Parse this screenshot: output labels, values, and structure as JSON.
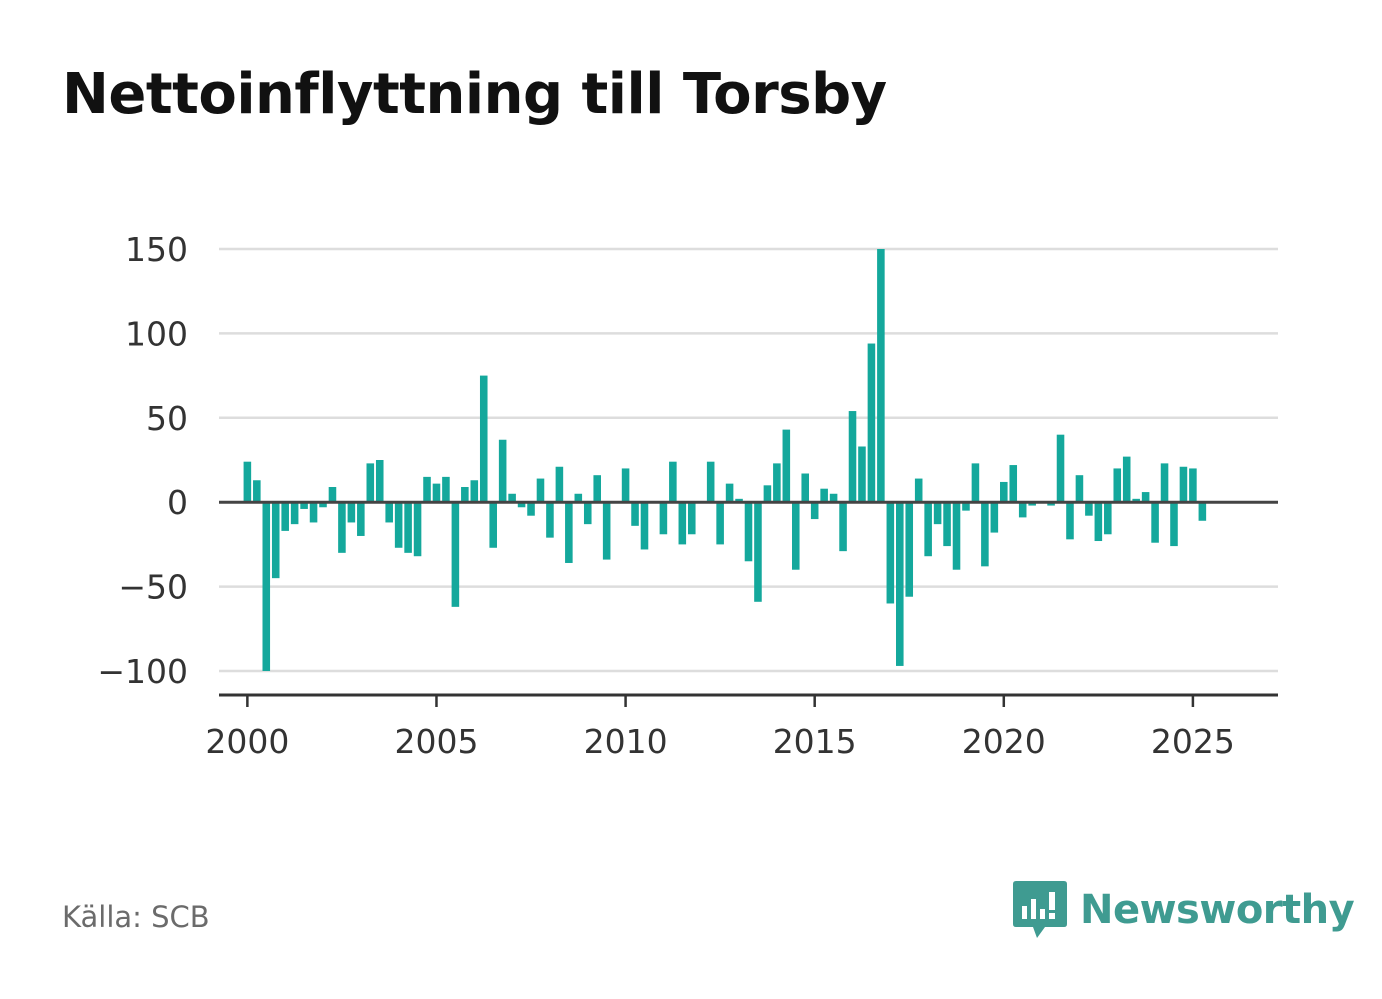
{
  "title": "Nettoinflyttning till Torsby",
  "source": "Källa: SCB",
  "brand": {
    "name": "Newsworthy",
    "color": "#3f9b91",
    "icon": "bar-chart-speech-bubble-icon"
  },
  "colors": {
    "bar": "#14a89c",
    "grid": "#dddddd",
    "zero_line": "#444444",
    "axis": "#333333"
  },
  "chart_data": {
    "type": "bar",
    "title": "Nettoinflyttning till Torsby",
    "xlabel": "",
    "ylabel": "",
    "ylim": [
      -115,
      150
    ],
    "xlim": [
      1999.25,
      2027.25
    ],
    "grid": true,
    "y_ticks": [
      -100,
      -50,
      0,
      50,
      100,
      150
    ],
    "y_tick_labels": [
      "−100",
      "−50",
      "0",
      "50",
      "100",
      "150"
    ],
    "x_ticks": [
      2000,
      2005,
      2010,
      2015,
      2020,
      2025
    ],
    "x_tick_labels": [
      "2000",
      "2005",
      "2010",
      "2015",
      "2020",
      "2025"
    ],
    "series": [
      {
        "values": [
          {
            "x": "2000-Q1",
            "y": 24
          },
          {
            "x": "2000-Q2",
            "y": 13
          },
          {
            "x": "2000-Q3",
            "y": -100
          },
          {
            "x": "2000-Q4",
            "y": -45
          },
          {
            "x": "2001-Q1",
            "y": -17
          },
          {
            "x": "2001-Q2",
            "y": -13
          },
          {
            "x": "2001-Q3",
            "y": -4
          },
          {
            "x": "2001-Q4",
            "y": -12
          },
          {
            "x": "2002-Q1",
            "y": -3
          },
          {
            "x": "2002-Q2",
            "y": 9
          },
          {
            "x": "2002-Q3",
            "y": -30
          },
          {
            "x": "2002-Q4",
            "y": -12
          },
          {
            "x": "2003-Q1",
            "y": -20
          },
          {
            "x": "2003-Q2",
            "y": 23
          },
          {
            "x": "2003-Q3",
            "y": 25
          },
          {
            "x": "2003-Q4",
            "y": -12
          },
          {
            "x": "2004-Q1",
            "y": -27
          },
          {
            "x": "2004-Q2",
            "y": -30
          },
          {
            "x": "2004-Q3",
            "y": -32
          },
          {
            "x": "2004-Q4",
            "y": 15
          },
          {
            "x": "2005-Q1",
            "y": 11
          },
          {
            "x": "2005-Q2",
            "y": 15
          },
          {
            "x": "2005-Q3",
            "y": -62
          },
          {
            "x": "2005-Q4",
            "y": 9
          },
          {
            "x": "2006-Q1",
            "y": 13
          },
          {
            "x": "2006-Q2",
            "y": 75
          },
          {
            "x": "2006-Q3",
            "y": -27
          },
          {
            "x": "2006-Q4",
            "y": 37
          },
          {
            "x": "2007-Q1",
            "y": 5
          },
          {
            "x": "2007-Q2",
            "y": -3
          },
          {
            "x": "2007-Q3",
            "y": -8
          },
          {
            "x": "2007-Q4",
            "y": 14
          },
          {
            "x": "2008-Q1",
            "y": -21
          },
          {
            "x": "2008-Q2",
            "y": 21
          },
          {
            "x": "2008-Q3",
            "y": -36
          },
          {
            "x": "2008-Q4",
            "y": 5
          },
          {
            "x": "2009-Q1",
            "y": -13
          },
          {
            "x": "2009-Q2",
            "y": 16
          },
          {
            "x": "2009-Q3",
            "y": -34
          },
          {
            "x": "2009-Q4",
            "y": 0
          },
          {
            "x": "2010-Q1",
            "y": 20
          },
          {
            "x": "2010-Q2",
            "y": -14
          },
          {
            "x": "2010-Q3",
            "y": -28
          },
          {
            "x": "2010-Q4",
            "y": 0
          },
          {
            "x": "2011-Q1",
            "y": -19
          },
          {
            "x": "2011-Q2",
            "y": 24
          },
          {
            "x": "2011-Q3",
            "y": -25
          },
          {
            "x": "2011-Q4",
            "y": -19
          },
          {
            "x": "2012-Q1",
            "y": 0
          },
          {
            "x": "2012-Q2",
            "y": 24
          },
          {
            "x": "2012-Q3",
            "y": -25
          },
          {
            "x": "2012-Q4",
            "y": 11
          },
          {
            "x": "2013-Q1",
            "y": 2
          },
          {
            "x": "2013-Q2",
            "y": -35
          },
          {
            "x": "2013-Q3",
            "y": -59
          },
          {
            "x": "2013-Q4",
            "y": 10
          },
          {
            "x": "2014-Q1",
            "y": 23
          },
          {
            "x": "2014-Q2",
            "y": 43
          },
          {
            "x": "2014-Q3",
            "y": -40
          },
          {
            "x": "2014-Q4",
            "y": 17
          },
          {
            "x": "2015-Q1",
            "y": -10
          },
          {
            "x": "2015-Q2",
            "y": 8
          },
          {
            "x": "2015-Q3",
            "y": 5
          },
          {
            "x": "2015-Q4",
            "y": -29
          },
          {
            "x": "2016-Q1",
            "y": 54
          },
          {
            "x": "2016-Q2",
            "y": 33
          },
          {
            "x": "2016-Q3",
            "y": 94
          },
          {
            "x": "2016-Q4",
            "y": 150
          },
          {
            "x": "2017-Q1",
            "y": -60
          },
          {
            "x": "2017-Q2",
            "y": -97
          },
          {
            "x": "2017-Q3",
            "y": -56
          },
          {
            "x": "2017-Q4",
            "y": 14
          },
          {
            "x": "2018-Q1",
            "y": -32
          },
          {
            "x": "2018-Q2",
            "y": -13
          },
          {
            "x": "2018-Q3",
            "y": -26
          },
          {
            "x": "2018-Q4",
            "y": -40
          },
          {
            "x": "2019-Q1",
            "y": -5
          },
          {
            "x": "2019-Q2",
            "y": 23
          },
          {
            "x": "2019-Q3",
            "y": -38
          },
          {
            "x": "2019-Q4",
            "y": -18
          },
          {
            "x": "2020-Q1",
            "y": 12
          },
          {
            "x": "2020-Q2",
            "y": 22
          },
          {
            "x": "2020-Q3",
            "y": -9
          },
          {
            "x": "2020-Q4",
            "y": -2
          },
          {
            "x": "2021-Q1",
            "y": 0
          },
          {
            "x": "2021-Q2",
            "y": -2
          },
          {
            "x": "2021-Q3",
            "y": 40
          },
          {
            "x": "2021-Q4",
            "y": -22
          },
          {
            "x": "2022-Q1",
            "y": 16
          },
          {
            "x": "2022-Q2",
            "y": -8
          },
          {
            "x": "2022-Q3",
            "y": -23
          },
          {
            "x": "2022-Q4",
            "y": -19
          },
          {
            "x": "2023-Q1",
            "y": 20
          },
          {
            "x": "2023-Q2",
            "y": 27
          },
          {
            "x": "2023-Q3",
            "y": 2
          },
          {
            "x": "2023-Q4",
            "y": 6
          },
          {
            "x": "2024-Q1",
            "y": -24
          },
          {
            "x": "2024-Q2",
            "y": 23
          },
          {
            "x": "2024-Q3",
            "y": -26
          },
          {
            "x": "2024-Q4",
            "y": 21
          },
          {
            "x": "2025-Q1",
            "y": 20
          },
          {
            "x": "2025-Q2",
            "y": -11
          }
        ]
      }
    ]
  }
}
